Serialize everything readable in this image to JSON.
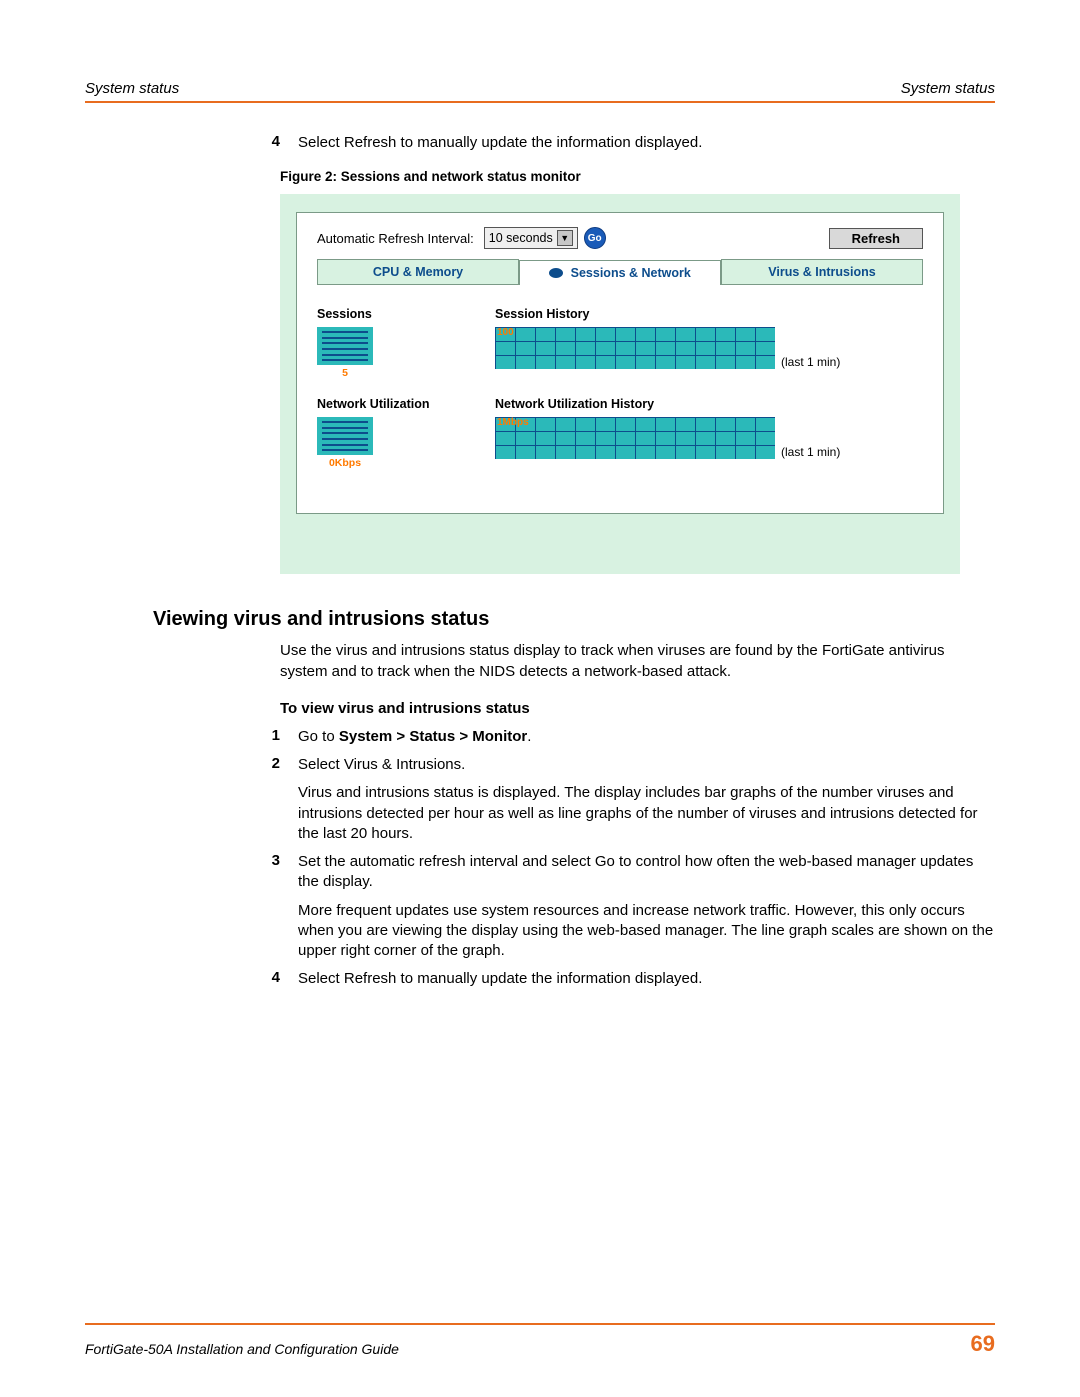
{
  "header": {
    "left": "System status",
    "right": "System status"
  },
  "top_step": {
    "num": "4",
    "text": "Select Refresh to manually update the information displayed."
  },
  "figure": {
    "caption": "Figure 2:  Sessions and network status monitor",
    "refresh_label": "Automatic Refresh Interval:",
    "refresh_value": "10 seconds",
    "go_label": "Go",
    "refresh_button": "Refresh",
    "tabs": {
      "cpu": "CPU & Memory",
      "sessions": "Sessions & Network",
      "virus": "Virus & Intrusions"
    },
    "sessions": {
      "title": "Sessions",
      "value": "5",
      "history_title": "Session History",
      "history_max": "100",
      "history_caption": "(last 1 min)"
    },
    "network": {
      "title": "Network Utilization",
      "value": "0Kbps",
      "history_title": "Network Utilization History",
      "history_max": "1Mbps",
      "history_caption": "(last 1 min)"
    }
  },
  "section": {
    "heading": "Viewing virus and intrusions status",
    "intro": "Use the virus and intrusions status display to track when viruses are found by the FortiGate antivirus system and to track when the NIDS detects a network-based attack.",
    "subhead": "To view virus and intrusions status",
    "steps": [
      {
        "num": "1",
        "html": "Go to <b>System > Status > Monitor</b>."
      },
      {
        "num": "2",
        "html": "Select Virus & Intrusions."
      },
      {
        "num": "",
        "html": "Virus and intrusions status is displayed. The display includes bar graphs of the number viruses and intrusions detected per hour as well as line graphs of the number of viruses and intrusions detected for the last 20 hours."
      },
      {
        "num": "3",
        "html": "Set the automatic refresh interval and select Go to control how often the web-based manager updates the display."
      },
      {
        "num": "",
        "html": "More frequent updates use system resources and increase network traffic. However, this only occurs when you are viewing the display using the web-based manager. The line graph scales are shown on the upper right corner of the graph."
      },
      {
        "num": "4",
        "html": "Select Refresh to manually update the information displayed."
      }
    ]
  },
  "footer": {
    "left": "FortiGate-50A Installation and Configuration Guide",
    "page": "69"
  },
  "colors": {
    "rule": "#e86c1f",
    "panel_bg": "#d8f2e1",
    "chart_fill": "#2bb9b9",
    "chart_grid": "#0d4d8c",
    "accent_orange": "#ff7a00",
    "tab_text": "#0d4d8c"
  }
}
